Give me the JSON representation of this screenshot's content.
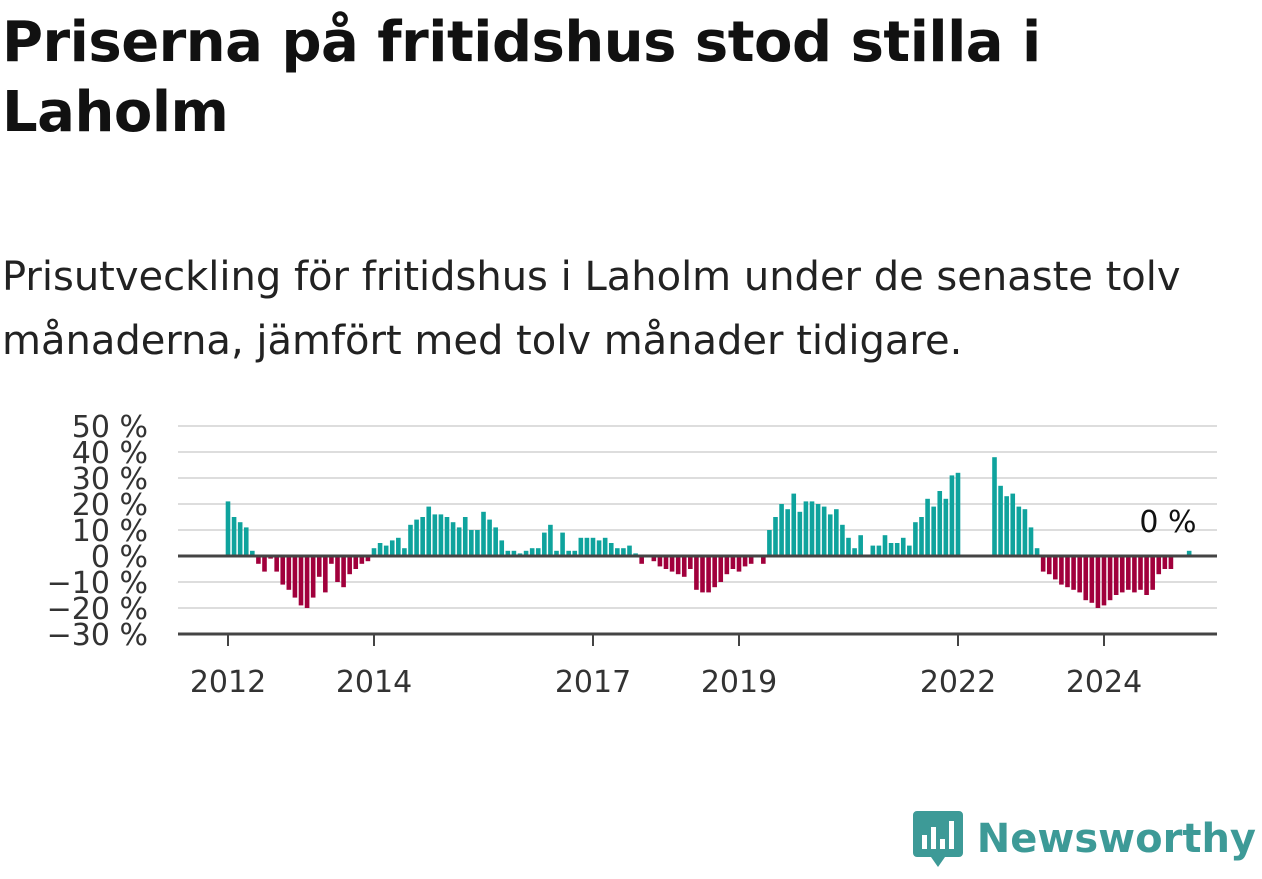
{
  "title": "Priserna på fritidshus stod stilla i Laholm",
  "subtitle": "Prisutveckling för fritidshus i Laholm under de senaste tolv månaderna, jämfört med tolv månader tidigare.",
  "brand": {
    "name": "Newsworthy",
    "icon": "newsworthy-logo-icon",
    "color": "#3d9a97"
  },
  "colors": {
    "positive": "#0fa39d",
    "negative": "#a1003c",
    "grid": "#dddddd",
    "axis": "#444444"
  },
  "chart_data": {
    "type": "bar",
    "ylabel": "",
    "xlabel": "",
    "ylim": [
      -30,
      50
    ],
    "yticks": [
      "50 %",
      "40 %",
      "30 %",
      "20 %",
      "10 %",
      "0 %",
      "−10 %",
      "−20 %",
      "−30 %"
    ],
    "ytick_values": [
      50,
      40,
      30,
      20,
      10,
      0,
      -10,
      -20,
      -30
    ],
    "xticks": [
      "2012",
      "2014",
      "2017",
      "2019",
      "2022",
      "2024"
    ],
    "xtick_values": [
      2012.0,
      2014.0,
      2017.0,
      2019.0,
      2022.0,
      2024.0
    ],
    "grid": true,
    "annotation": "0 %",
    "x_start": 2012.0,
    "x_step_months": 1,
    "values": [
      21,
      15,
      13,
      11,
      2,
      -3,
      -6,
      -1,
      -6,
      -11,
      -13,
      -16,
      -19,
      -20,
      -16,
      -8,
      -14,
      -3,
      -10,
      -12,
      -7,
      -5,
      -3,
      -2,
      3,
      5,
      4,
      6,
      7,
      3,
      12,
      14,
      15,
      19,
      16,
      16,
      15,
      13,
      11,
      15,
      10,
      10,
      17,
      14,
      11,
      6,
      2,
      2,
      1,
      2,
      3,
      3,
      9,
      12,
      2,
      9,
      2,
      2,
      7,
      7,
      7,
      6,
      7,
      5,
      3,
      3,
      4,
      1,
      -3,
      0,
      -2,
      -4,
      -5,
      -6,
      -7,
      -8,
      -5,
      -13,
      -14,
      -14,
      -12,
      -10,
      -7,
      -5,
      -6,
      -4,
      -3,
      0,
      -3,
      10,
      15,
      20,
      18,
      24,
      17,
      21,
      21,
      20,
      19,
      16,
      18,
      12,
      7,
      3,
      8,
      0,
      4,
      4,
      8,
      5,
      5,
      7,
      4,
      13,
      15,
      22,
      19,
      25,
      22,
      31,
      32,
      null,
      null,
      null,
      null,
      null,
      38,
      27,
      23,
      24,
      19,
      18,
      11,
      3,
      -6,
      -7,
      -9,
      -11,
      -12,
      -13,
      -14,
      -17,
      -18,
      -20,
      -19,
      -17,
      -15,
      -14,
      -13,
      -14,
      -13,
      -15,
      -13,
      -7,
      -5,
      -5,
      0,
      0,
      2
    ]
  }
}
